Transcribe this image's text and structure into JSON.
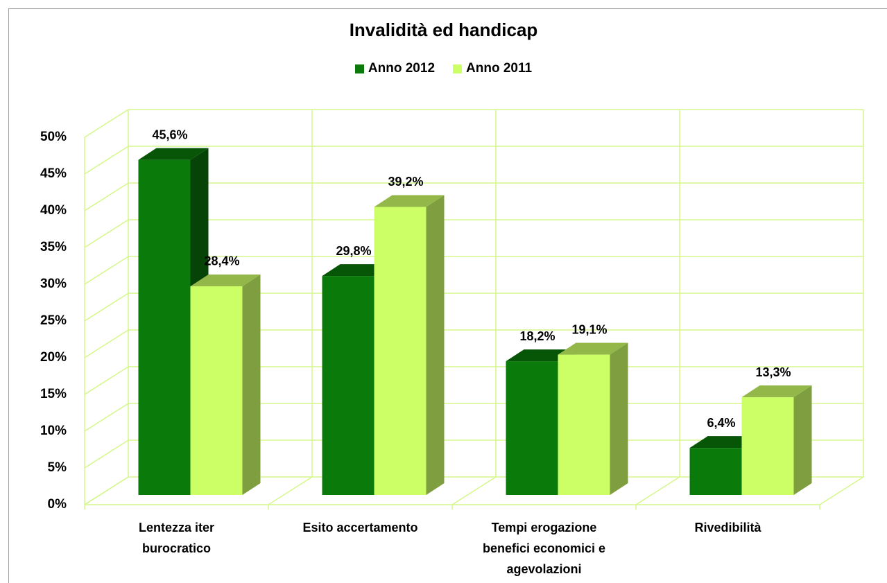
{
  "chart_data": {
    "type": "bar3d",
    "title": "Invalidità ed handicap",
    "categories": [
      "Lentezza iter burocratico",
      "Esito accertamento",
      "Tempi erogazione benefici economici e agevolazioni",
      "Rivedibilità"
    ],
    "series": [
      {
        "name": "Anno 2012",
        "color": "#0a7a0a",
        "values": [
          45.6,
          29.8,
          18.2,
          6.4
        ],
        "value_labels": [
          "45,6%",
          "29,8%",
          "18,2%",
          "6,4%"
        ]
      },
      {
        "name": "Anno 2011",
        "color": "#ccff66",
        "values": [
          28.4,
          39.2,
          19.1,
          13.3
        ],
        "value_labels": [
          "28,4%",
          "39,2%",
          "19,1%",
          "13,3%"
        ]
      }
    ],
    "ylim": [
      0,
      50
    ],
    "yticks": [
      {
        "value": 0,
        "label": "0%"
      },
      {
        "value": 5,
        "label": "5%"
      },
      {
        "value": 10,
        "label": "10%"
      },
      {
        "value": 15,
        "label": "15%"
      },
      {
        "value": 20,
        "label": "20%"
      },
      {
        "value": 25,
        "label": "25%"
      },
      {
        "value": 30,
        "label": "30%"
      },
      {
        "value": 35,
        "label": "35%"
      },
      {
        "value": 40,
        "label": "40%"
      },
      {
        "value": 45,
        "label": "45%"
      },
      {
        "value": 50,
        "label": "50%"
      }
    ],
    "grid": true,
    "legend": "top"
  }
}
